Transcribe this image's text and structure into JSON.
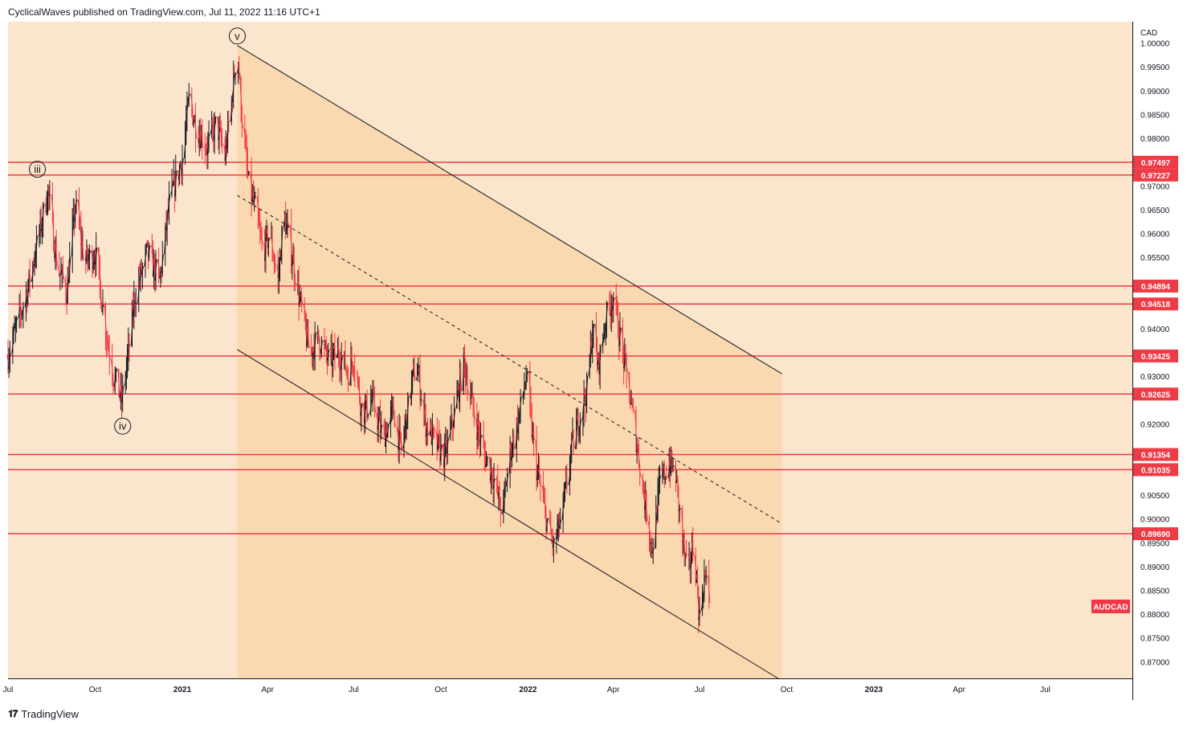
{
  "header": {
    "publisher_line": "CyclicalWaves published on TradingView.com, Jul 11, 2022 11:16 UTC+1"
  },
  "footer": {
    "logo_text": "TradingView",
    "logo_icon": "tradingview-logo-icon"
  },
  "colors": {
    "background": "#fbe5cd",
    "channel_fill": "#fad9b0",
    "level_line": "#ef3b46",
    "up_candle": "#131722",
    "down_candle": "#f23645",
    "trendline": "#131722",
    "symbol_badge": "#f23645"
  },
  "chart_data": {
    "type": "candlestick",
    "symbol": "AUDCAD",
    "currency": "CAD",
    "ylim": [
      0.8665,
      1.0045
    ],
    "xlim": [
      "2020-07-01",
      "2023-10-01"
    ],
    "y_ticks": [
      "0.87000",
      "0.87500",
      "0.88000",
      "0.88500",
      "0.89000",
      "0.89500",
      "0.90000",
      "0.90500",
      "0.91000",
      "0.91500",
      "0.92000",
      "0.92500",
      "0.93000",
      "0.93500",
      "0.94000",
      "0.94500",
      "0.95000",
      "0.95500",
      "0.96000",
      "0.96500",
      "0.97000",
      "0.97500",
      "0.98000",
      "0.98500",
      "0.99000",
      "0.99500",
      "1.00000"
    ],
    "x_ticks": [
      {
        "label": "Jul",
        "date": "2020-07-01",
        "bold": false
      },
      {
        "label": "Oct",
        "date": "2020-10-01",
        "bold": false
      },
      {
        "label": "2021",
        "date": "2021-01-01",
        "bold": true
      },
      {
        "label": "Apr",
        "date": "2021-04-01",
        "bold": false
      },
      {
        "label": "Jul",
        "date": "2021-07-01",
        "bold": false
      },
      {
        "label": "Oct",
        "date": "2021-10-01",
        "bold": false
      },
      {
        "label": "2022",
        "date": "2022-01-01",
        "bold": true
      },
      {
        "label": "Apr",
        "date": "2022-04-01",
        "bold": false
      },
      {
        "label": "Jul",
        "date": "2022-07-01",
        "bold": false
      },
      {
        "label": "Oct",
        "date": "2022-10-01",
        "bold": false
      },
      {
        "label": "2023",
        "date": "2023-01-01",
        "bold": true
      },
      {
        "label": "Apr",
        "date": "2023-04-01",
        "bold": false
      },
      {
        "label": "Jul",
        "date": "2023-07-01",
        "bold": false
      }
    ],
    "horizontal_levels": [
      "0.97497",
      "0.97227",
      "0.94894",
      "0.94518",
      "0.93425",
      "0.92625",
      "0.91354",
      "0.91035",
      "0.89690"
    ],
    "price_path": [
      [
        "2020-07-01",
        0.9345
      ],
      [
        "2020-07-20",
        0.947
      ],
      [
        "2020-08-05",
        0.962
      ],
      [
        "2020-08-12",
        0.969
      ],
      [
        "2020-08-22",
        0.953
      ],
      [
        "2020-09-01",
        0.948
      ],
      [
        "2020-09-10",
        0.966
      ],
      [
        "2020-09-20",
        0.954
      ],
      [
        "2020-10-01",
        0.956
      ],
      [
        "2020-10-12",
        0.94
      ],
      [
        "2020-10-20",
        0.9305
      ],
      [
        "2020-10-29",
        0.9248
      ],
      [
        "2020-11-05",
        0.935
      ],
      [
        "2020-11-12",
        0.947
      ],
      [
        "2020-11-25",
        0.956
      ],
      [
        "2020-12-08",
        0.95
      ],
      [
        "2020-12-18",
        0.966
      ],
      [
        "2021-01-01",
        0.976
      ],
      [
        "2021-01-08",
        0.988
      ],
      [
        "2021-01-15",
        0.983
      ],
      [
        "2021-01-27",
        0.978
      ],
      [
        "2021-02-06",
        0.983
      ],
      [
        "2021-02-15",
        0.976
      ],
      [
        "2021-02-22",
        0.988
      ],
      [
        "2021-02-28",
        0.9996
      ],
      [
        "2021-03-05",
        0.984
      ],
      [
        "2021-03-12",
        0.97
      ],
      [
        "2021-03-19",
        0.965
      ],
      [
        "2021-03-27",
        0.956
      ],
      [
        "2021-04-03",
        0.96
      ],
      [
        "2021-04-12",
        0.95
      ],
      [
        "2021-04-18",
        0.964
      ],
      [
        "2021-04-28",
        0.954
      ],
      [
        "2021-05-05",
        0.946
      ],
      [
        "2021-05-15",
        0.935
      ],
      [
        "2021-05-25",
        0.938
      ],
      [
        "2021-06-05",
        0.933
      ],
      [
        "2021-06-15",
        0.935
      ],
      [
        "2021-06-25",
        0.931
      ],
      [
        "2021-07-01",
        0.934
      ],
      [
        "2021-07-10",
        0.922
      ],
      [
        "2021-07-20",
        0.925
      ],
      [
        "2021-08-01",
        0.917
      ],
      [
        "2021-08-12",
        0.923
      ],
      [
        "2021-08-20",
        0.914
      ],
      [
        "2021-08-30",
        0.927
      ],
      [
        "2021-09-05",
        0.933
      ],
      [
        "2021-09-15",
        0.92
      ],
      [
        "2021-09-25",
        0.916
      ],
      [
        "2021-10-05",
        0.913
      ],
      [
        "2021-10-15",
        0.922
      ],
      [
        "2021-10-25",
        0.933
      ],
      [
        "2021-11-05",
        0.922
      ],
      [
        "2021-11-15",
        0.914
      ],
      [
        "2021-11-25",
        0.909
      ],
      [
        "2021-12-05",
        0.901
      ],
      [
        "2021-12-12",
        0.913
      ],
      [
        "2021-12-22",
        0.921
      ],
      [
        "2021-12-30",
        0.93
      ],
      [
        "2022-01-08",
        0.913
      ],
      [
        "2022-01-18",
        0.902
      ],
      [
        "2022-01-28",
        0.894
      ],
      [
        "2022-02-07",
        0.902
      ],
      [
        "2022-02-15",
        0.914
      ],
      [
        "2022-02-25",
        0.922
      ],
      [
        "2022-03-05",
        0.928
      ],
      [
        "2022-03-10",
        0.94
      ],
      [
        "2022-03-16",
        0.932
      ],
      [
        "2022-03-24",
        0.942
      ],
      [
        "2022-04-01",
        0.947
      ],
      [
        "2022-04-08",
        0.938
      ],
      [
        "2022-04-15",
        0.93
      ],
      [
        "2022-04-25",
        0.917
      ],
      [
        "2022-05-04",
        0.904
      ],
      [
        "2022-05-12",
        0.894
      ],
      [
        "2022-05-20",
        0.907
      ],
      [
        "2022-05-30",
        0.912
      ],
      [
        "2022-06-06",
        0.909
      ],
      [
        "2022-06-12",
        0.897
      ],
      [
        "2022-06-18",
        0.888
      ],
      [
        "2022-06-25",
        0.895
      ],
      [
        "2022-07-01",
        0.879
      ],
      [
        "2022-07-06",
        0.888
      ],
      [
        "2022-07-11",
        0.883
      ]
    ],
    "channel": {
      "upper": [
        [
          "2021-02-28",
          0.9995
        ],
        [
          "2022-09-26",
          0.9305
        ]
      ],
      "middle": [
        [
          "2021-02-28",
          0.968
        ],
        [
          "2022-09-26",
          0.899
        ]
      ],
      "lower": [
        [
          "2021-02-28",
          0.9356
        ],
        [
          "2022-09-26",
          0.866
        ]
      ],
      "shade_end": "2022-09-26"
    },
    "wave_labels": [
      {
        "label": "v",
        "date": "2021-02-28",
        "price": 1.0015
      },
      {
        "label": "iii",
        "date": "2020-08-01",
        "price": 0.9735
      },
      {
        "label": "iv",
        "date": "2020-10-30",
        "price": 0.9195
      }
    ]
  }
}
